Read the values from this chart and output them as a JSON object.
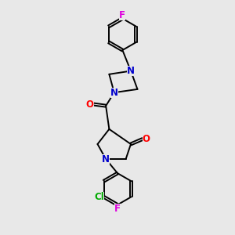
{
  "bg_color": "#e8e8e8",
  "bond_color": "#000000",
  "N_color": "#0000cc",
  "O_color": "#ff0000",
  "F_color": "#dd00dd",
  "Cl_color": "#00aa00",
  "line_width": 1.4,
  "font_size": 8.5,
  "xlim": [
    0,
    10
  ],
  "ylim": [
    0,
    14
  ]
}
